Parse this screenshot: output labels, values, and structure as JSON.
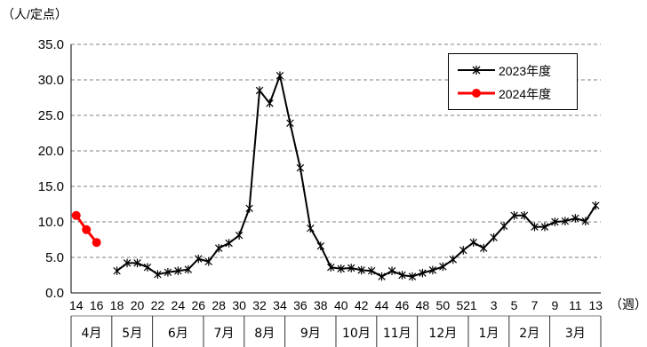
{
  "chart_data": {
    "type": "line",
    "y_unit": "（人/定点）",
    "x_unit": "（週）",
    "ylim": [
      0,
      35
    ],
    "y_ticks": [
      "0.0",
      "5.0",
      "10.0",
      "15.0",
      "20.0",
      "25.0",
      "30.0",
      "35.0"
    ],
    "grid": "horizontal dashed",
    "legend_position": "top-right",
    "weeks": [
      14,
      15,
      16,
      17,
      18,
      19,
      20,
      21,
      22,
      23,
      24,
      25,
      26,
      27,
      28,
      29,
      30,
      31,
      32,
      33,
      34,
      35,
      36,
      37,
      38,
      39,
      40,
      41,
      42,
      43,
      44,
      45,
      46,
      47,
      48,
      49,
      50,
      51,
      52,
      1,
      2,
      3,
      4,
      5,
      6,
      7,
      8,
      9,
      10,
      11,
      12,
      13
    ],
    "x_tick_labels": [
      "14",
      "16",
      "18",
      "20",
      "22",
      "24",
      "26",
      "28",
      "30",
      "32",
      "34",
      "36",
      "38",
      "40",
      "42",
      "44",
      "46",
      "48",
      "50",
      "52",
      "1",
      "3",
      "5",
      "7",
      "9",
      "11",
      "13"
    ],
    "months": [
      "4月",
      "5月",
      "6月",
      "7月",
      "8月",
      "9月",
      "10月",
      "11月",
      "12月",
      "1月",
      "2月",
      "3月"
    ],
    "series": [
      {
        "name": "2023年度",
        "color": "#000000",
        "marker": "asterisk",
        "values": [
          null,
          null,
          null,
          null,
          3.1,
          4.2,
          4.2,
          3.6,
          2.6,
          2.9,
          3.1,
          3.3,
          4.8,
          4.4,
          6.3,
          7.0,
          8.1,
          11.9,
          28.5,
          26.7,
          30.6,
          23.9,
          17.6,
          9.1,
          6.6,
          3.6,
          3.4,
          3.5,
          3.2,
          3.1,
          2.3,
          3.1,
          2.5,
          2.3,
          2.8,
          3.2,
          3.7,
          4.7,
          6.0,
          7.1,
          6.3,
          7.8,
          9.4,
          10.9,
          10.9,
          9.3,
          9.3,
          10.0,
          10.1,
          10.5,
          10.1,
          12.3
        ]
      },
      {
        "name": "2024年度",
        "color": "#ff0000",
        "marker": "circle",
        "values": [
          10.9,
          8.9,
          7.1
        ]
      }
    ]
  }
}
